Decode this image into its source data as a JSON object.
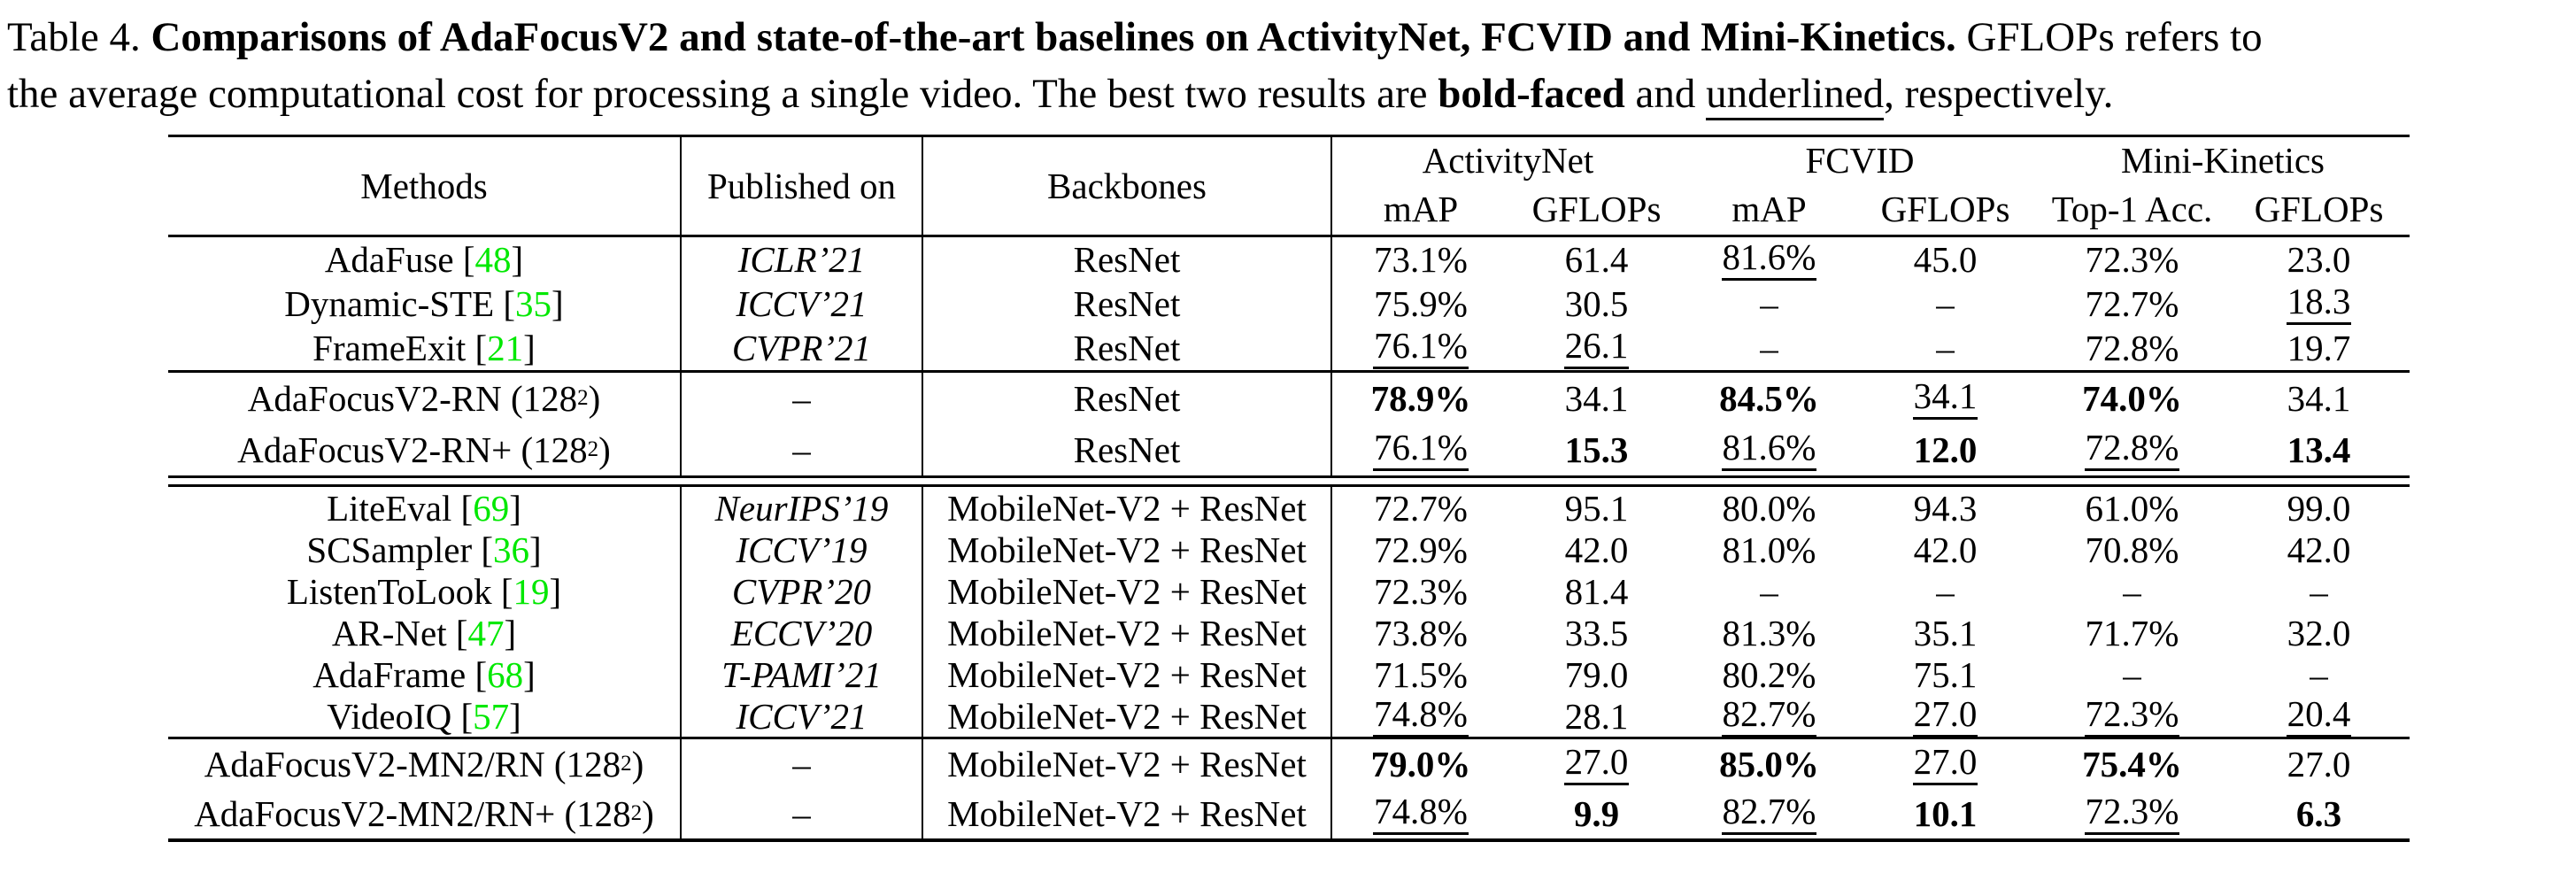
{
  "colors": {
    "citation_green": "#00e800"
  },
  "caption": {
    "label": "Table 4. ",
    "title_bold": "Comparisons of AdaFocusV2 and state-of-the-art baselines on ActivityNet, FCVID and Mini-Kinetics.",
    "line1_rest": " GFLOPs refers to",
    "line2_pre": "the average computational cost for processing a single video. The best two results are ",
    "bold_faced": "bold-faced",
    "line2_mid": " and ",
    "underlined_word": "underlined",
    "line2_suffix": ", respectively."
  },
  "table": {
    "columns": [
      "Methods",
      "Published on",
      "Backbones"
    ],
    "dataset_groups": [
      {
        "name": "ActivityNet",
        "metrics": [
          "mAP",
          "GFLOPs"
        ]
      },
      {
        "name": "FCVID",
        "metrics": [
          "mAP",
          "GFLOPs"
        ]
      },
      {
        "name": "Mini-Kinetics",
        "metrics": [
          "Top-1 Acc.",
          "GFLOPs"
        ]
      }
    ],
    "groups": [
      {
        "divider_after": "single",
        "rows": [
          {
            "method": {
              "name": "AdaFuse",
              "cite": "48"
            },
            "published": "ICLR’21",
            "backbone": "ResNet",
            "values": [
              {
                "t": "73.1%"
              },
              {
                "t": "61.4"
              },
              {
                "t": "81.6%",
                "s": "u"
              },
              {
                "t": "45.0"
              },
              {
                "t": "72.3%"
              },
              {
                "t": "23.0"
              }
            ]
          },
          {
            "method": {
              "name": "Dynamic-STE",
              "cite": "35"
            },
            "published": "ICCV’21",
            "backbone": "ResNet",
            "values": [
              {
                "t": "75.9%"
              },
              {
                "t": "30.5"
              },
              {
                "t": "–"
              },
              {
                "t": "–"
              },
              {
                "t": "72.7%"
              },
              {
                "t": "18.3",
                "s": "u"
              }
            ]
          },
          {
            "method": {
              "name": "FrameExit",
              "cite": "21"
            },
            "published": "CVPR’21",
            "backbone": "ResNet",
            "values": [
              {
                "t": "76.1%",
                "s": "u"
              },
              {
                "t": "26.1",
                "s": "u"
              },
              {
                "t": "–"
              },
              {
                "t": "–"
              },
              {
                "t": "72.8%"
              },
              {
                "t": "19.7"
              }
            ]
          }
        ]
      },
      {
        "divider_after": "double",
        "rows": [
          {
            "method": {
              "name": "AdaFocusV2-RN (128",
              "sup": "2",
              "close": ")"
            },
            "published": "–",
            "backbone": "ResNet",
            "values": [
              {
                "t": "78.9%",
                "s": "b"
              },
              {
                "t": "34.1"
              },
              {
                "t": "84.5%",
                "s": "b"
              },
              {
                "t": "34.1",
                "s": "u"
              },
              {
                "t": "74.0%",
                "s": "b"
              },
              {
                "t": "34.1"
              }
            ]
          },
          {
            "method": {
              "name": "AdaFocusV2-RN+ (128",
              "sup": "2",
              "close": ")"
            },
            "published": "–",
            "backbone": "ResNet",
            "values": [
              {
                "t": "76.1%",
                "s": "u"
              },
              {
                "t": "15.3",
                "s": "b"
              },
              {
                "t": "81.6%",
                "s": "u"
              },
              {
                "t": "12.0",
                "s": "b"
              },
              {
                "t": "72.8%",
                "s": "u"
              },
              {
                "t": "13.4",
                "s": "b"
              }
            ]
          }
        ]
      },
      {
        "divider_after": "single",
        "rows": [
          {
            "method": {
              "name": "LiteEval",
              "cite": "69"
            },
            "published": "NeurIPS’19",
            "backbone": "MobileNet-V2 + ResNet",
            "values": [
              {
                "t": "72.7%"
              },
              {
                "t": "95.1"
              },
              {
                "t": "80.0%"
              },
              {
                "t": "94.3"
              },
              {
                "t": "61.0%"
              },
              {
                "t": "99.0"
              }
            ]
          },
          {
            "method": {
              "name": "SCSampler",
              "cite": "36"
            },
            "published": "ICCV’19",
            "backbone": "MobileNet-V2 + ResNet",
            "values": [
              {
                "t": "72.9%"
              },
              {
                "t": "42.0"
              },
              {
                "t": "81.0%"
              },
              {
                "t": "42.0"
              },
              {
                "t": "70.8%"
              },
              {
                "t": "42.0"
              }
            ]
          },
          {
            "method": {
              "name": "ListenToLook",
              "cite": "19"
            },
            "published": "CVPR’20",
            "backbone": "MobileNet-V2 + ResNet",
            "values": [
              {
                "t": "72.3%"
              },
              {
                "t": "81.4"
              },
              {
                "t": "–"
              },
              {
                "t": "–"
              },
              {
                "t": "–"
              },
              {
                "t": "–"
              }
            ]
          },
          {
            "method": {
              "name": "AR-Net",
              "cite": "47"
            },
            "published": "ECCV’20",
            "backbone": "MobileNet-V2 + ResNet",
            "values": [
              {
                "t": "73.8%"
              },
              {
                "t": "33.5"
              },
              {
                "t": "81.3%"
              },
              {
                "t": "35.1"
              },
              {
                "t": "71.7%"
              },
              {
                "t": "32.0"
              }
            ]
          },
          {
            "method": {
              "name": "AdaFrame",
              "cite": "68"
            },
            "published": "T-PAMI’21",
            "backbone": "MobileNet-V2 + ResNet",
            "values": [
              {
                "t": "71.5%"
              },
              {
                "t": "79.0"
              },
              {
                "t": "80.2%"
              },
              {
                "t": "75.1"
              },
              {
                "t": "–"
              },
              {
                "t": "–"
              }
            ]
          },
          {
            "method": {
              "name": "VideoIQ",
              "cite": "57"
            },
            "published": "ICCV’21",
            "backbone": "MobileNet-V2 + ResNet",
            "values": [
              {
                "t": "74.8%",
                "s": "u"
              },
              {
                "t": "28.1"
              },
              {
                "t": "82.7%",
                "s": "u"
              },
              {
                "t": "27.0",
                "s": "u"
              },
              {
                "t": "72.3%",
                "s": "u"
              },
              {
                "t": "20.4",
                "s": "u"
              }
            ]
          }
        ]
      },
      {
        "divider_after": "bottom",
        "rows": [
          {
            "method": {
              "name": "AdaFocusV2-MN2/RN (128",
              "sup": "2",
              "close": ")"
            },
            "published": "–",
            "backbone": "MobileNet-V2 + ResNet",
            "values": [
              {
                "t": "79.0%",
                "s": "b"
              },
              {
                "t": "27.0",
                "s": "u"
              },
              {
                "t": "85.0%",
                "s": "b"
              },
              {
                "t": "27.0",
                "s": "u"
              },
              {
                "t": "75.4%",
                "s": "b"
              },
              {
                "t": "27.0"
              }
            ]
          },
          {
            "method": {
              "name": "AdaFocusV2-MN2/RN+ (128",
              "sup": "2",
              "close": ")"
            },
            "published": "–",
            "backbone": "MobileNet-V2 + ResNet",
            "values": [
              {
                "t": "74.8%",
                "s": "u"
              },
              {
                "t": "9.9",
                "s": "b"
              },
              {
                "t": "82.7%",
                "s": "u"
              },
              {
                "t": "10.1",
                "s": "b"
              },
              {
                "t": "72.3%",
                "s": "u"
              },
              {
                "t": "6.3",
                "s": "b"
              }
            ]
          }
        ]
      }
    ]
  }
}
